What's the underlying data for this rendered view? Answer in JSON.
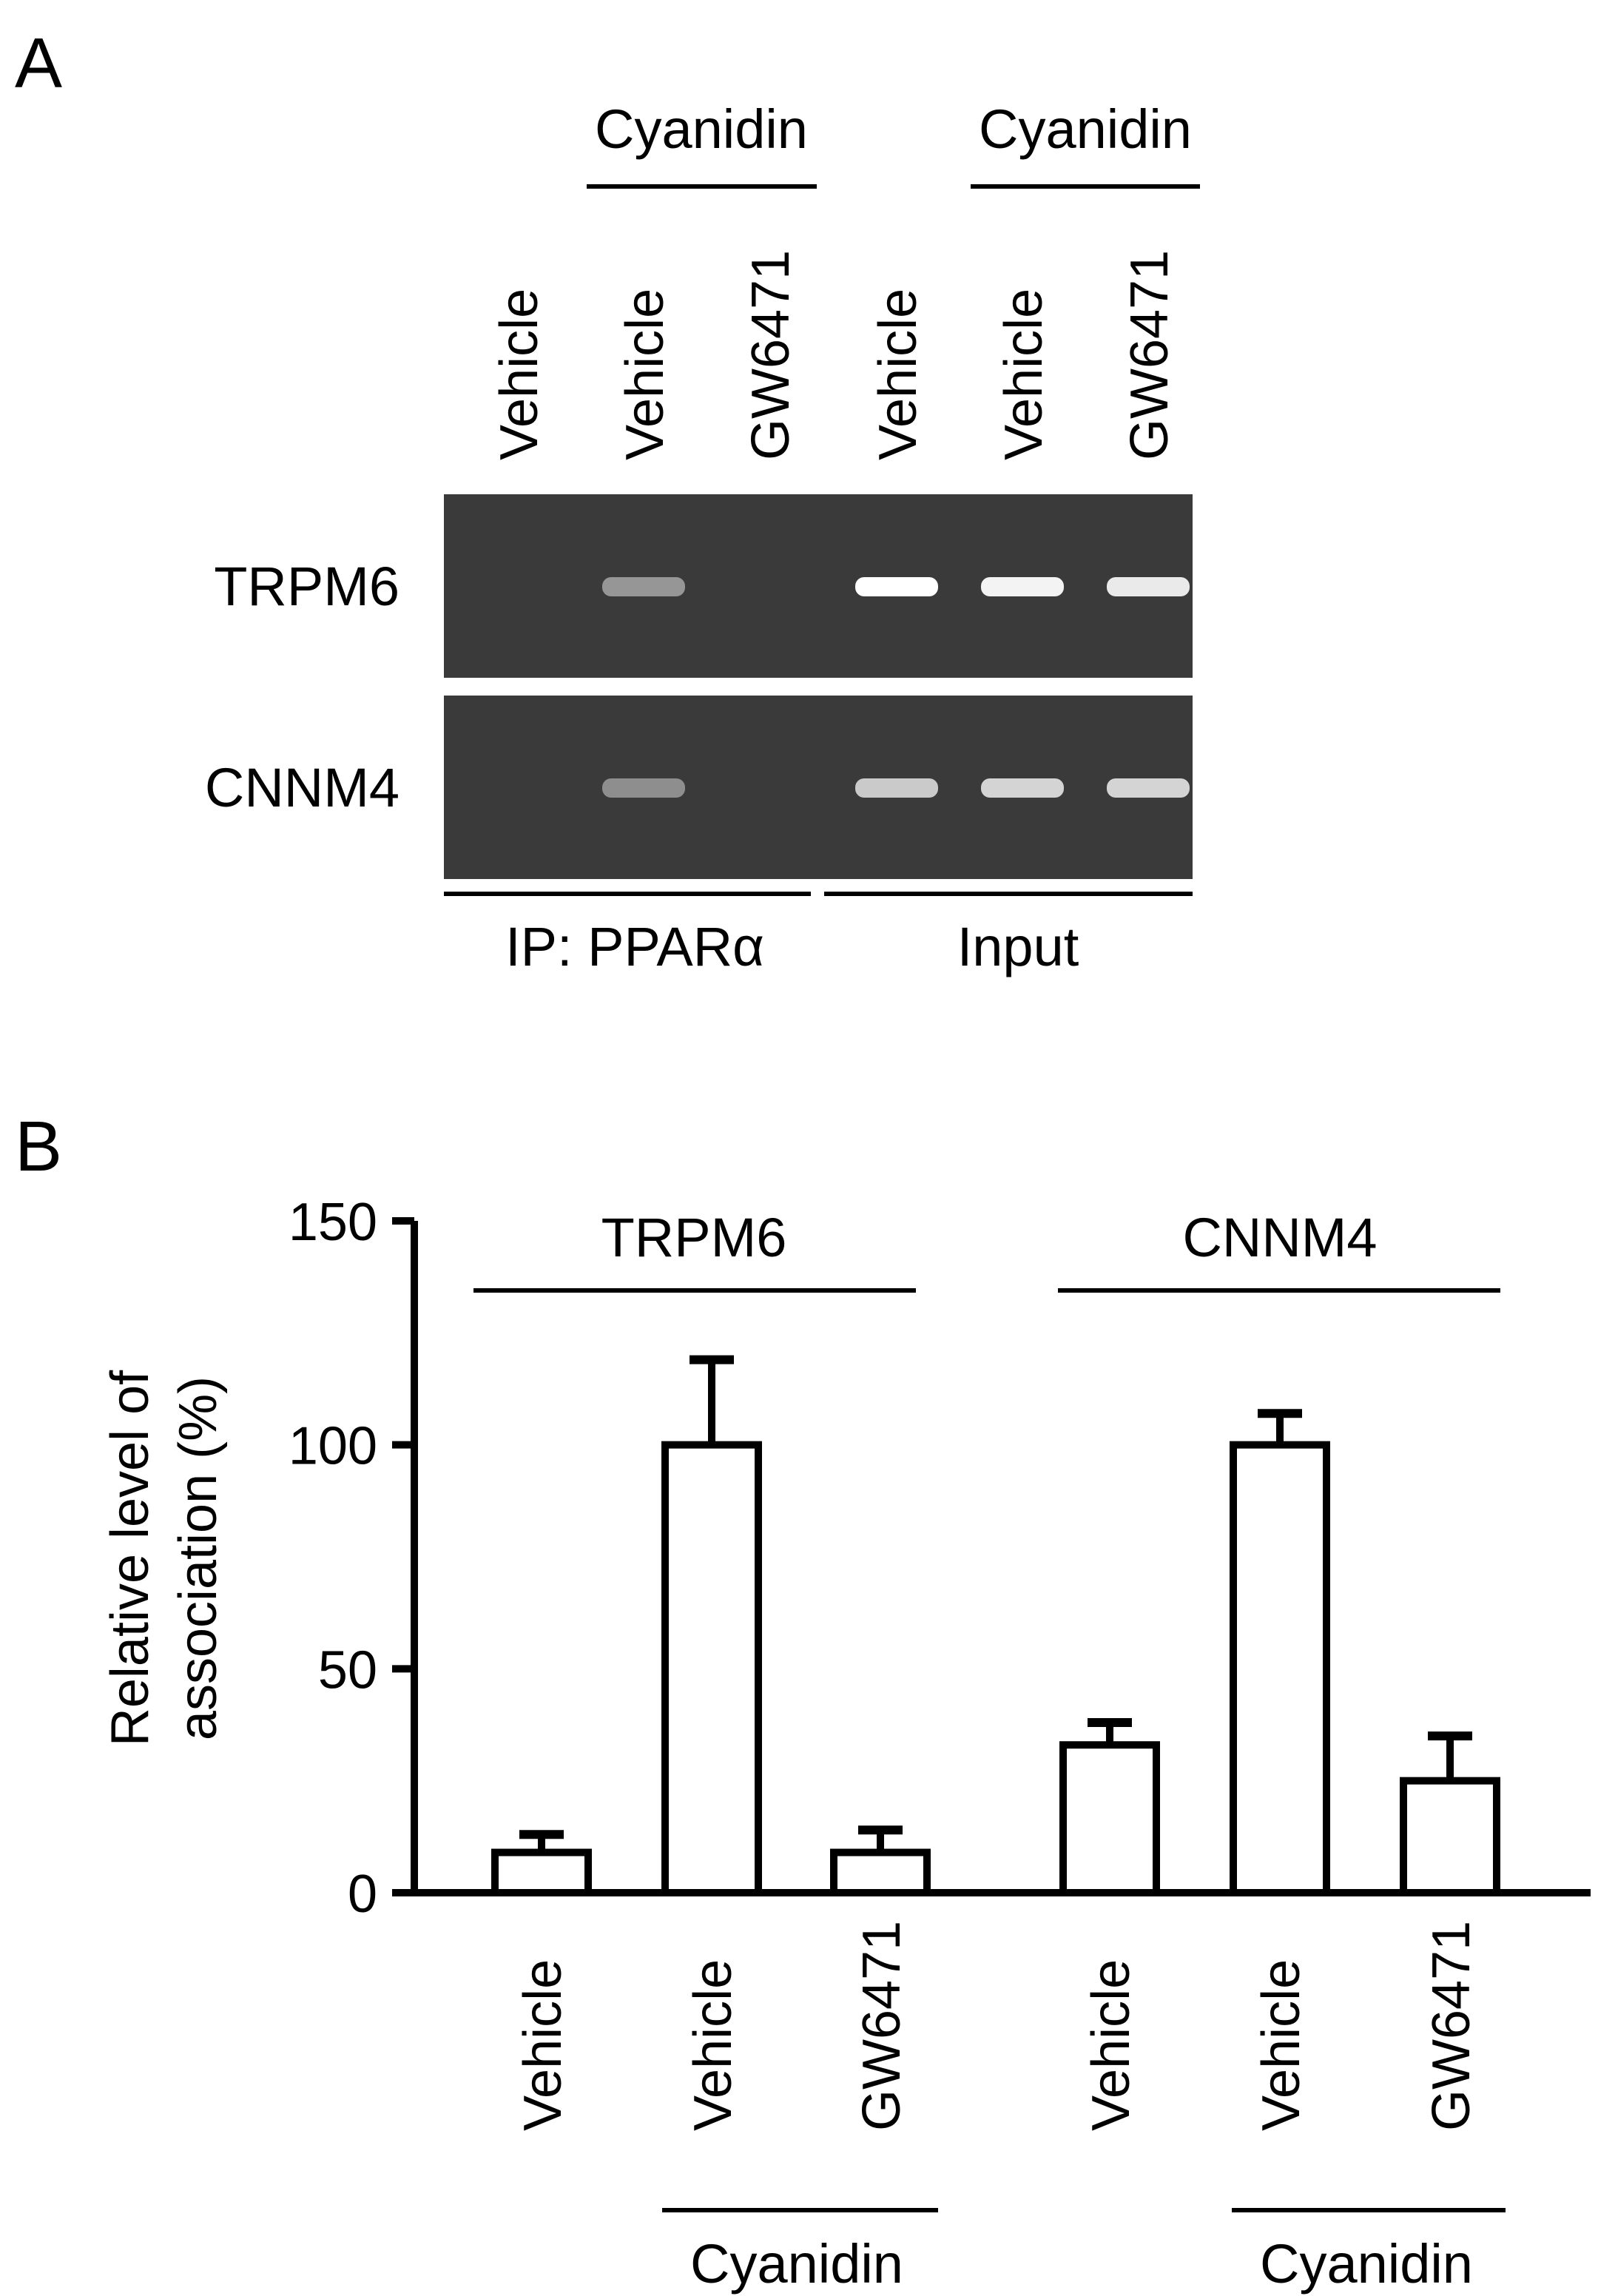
{
  "panel_a": {
    "label": "A",
    "treatment_groups": [
      "Cyanidin",
      "Cyanidin"
    ],
    "lanes": [
      "Vehicle",
      "Vehicle",
      "GW6471",
      "Vehicle",
      "Vehicle",
      "GW6471"
    ],
    "blots": [
      {
        "name": "TRPM6",
        "band_intensity": [
          0,
          0.45,
          0,
          1.0,
          0.95,
          0.9
        ]
      },
      {
        "name": "CNNM4",
        "band_intensity": [
          0,
          0.4,
          0,
          0.75,
          0.8,
          0.8
        ]
      }
    ],
    "sections": [
      "IP: PPARα",
      "Input"
    ]
  },
  "panel_b": {
    "label": "B",
    "group_labels": [
      "TRPM6",
      "CNNM4"
    ],
    "lane_labels": [
      "Vehicle",
      "Vehicle",
      "GW6471",
      "Vehicle",
      "Vehicle",
      "GW6471"
    ],
    "treatment_labels": [
      "Cyanidin",
      "Cyanidin"
    ]
  },
  "chart_data": {
    "type": "bar",
    "ylabel": "Relative level of association (%)",
    "ylim": [
      0,
      150
    ],
    "yticks": [
      0,
      50,
      100,
      150
    ],
    "ytick_labels": [
      "0",
      "50",
      "100",
      "150"
    ],
    "categories": [
      "Vehicle",
      "Vehicle",
      "GW6471",
      "Vehicle",
      "Vehicle",
      "GW6471"
    ],
    "groups": [
      "TRPM6",
      "CNNM4"
    ],
    "values": [
      9,
      100,
      9,
      33,
      100,
      25
    ],
    "errors": [
      4,
      19,
      5,
      5,
      7,
      10
    ],
    "bar_fill": "#ffffff",
    "bar_stroke": "#000000",
    "grid": false
  }
}
